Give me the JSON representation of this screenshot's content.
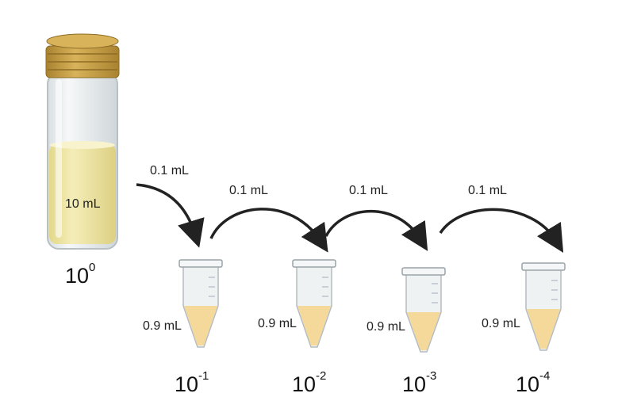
{
  "stock": {
    "volume_label": "10 mL",
    "dilution_base": "10",
    "dilution_exp": "0"
  },
  "transfers": [
    {
      "label": "0.1 mL"
    },
    {
      "label": "0.1 mL"
    },
    {
      "label": "0.1 mL"
    },
    {
      "label": "0.1 mL"
    }
  ],
  "tubes": [
    {
      "volume_label": "0.9 mL",
      "dilution_base": "10",
      "dilution_exp": "-1"
    },
    {
      "volume_label": "0.9 mL",
      "dilution_base": "10",
      "dilution_exp": "-2"
    },
    {
      "volume_label": "0.9 mL",
      "dilution_base": "10",
      "dilution_exp": "-3"
    },
    {
      "volume_label": "0.9 mL",
      "dilution_base": "10",
      "dilution_exp": "-4"
    }
  ],
  "colors": {
    "cap": "#c9a24a",
    "cap_dark": "#9c7a2c",
    "liquid": "#f0e7a6",
    "tube_liquid": "#f5d99a",
    "glass": "#e9eef0",
    "arrow": "#222222"
  }
}
